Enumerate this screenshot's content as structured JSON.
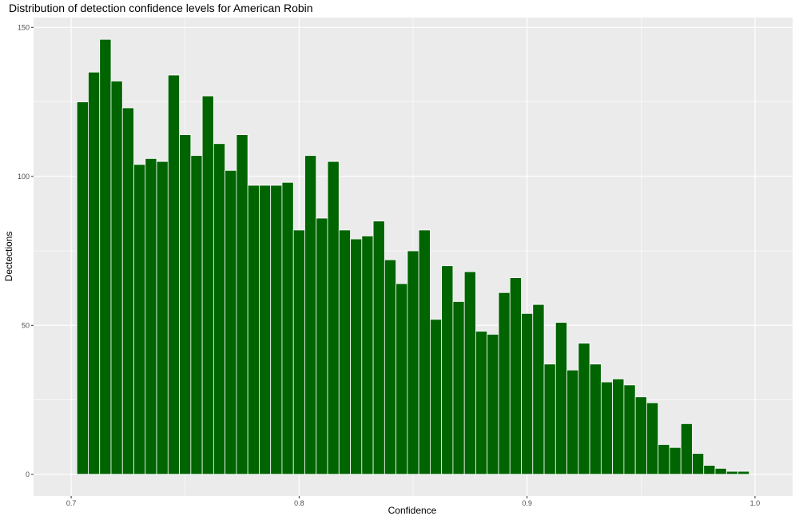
{
  "chart_data": {
    "type": "bar",
    "title": "Distribution of detection confidence levels for American Robin",
    "xlabel": "Confidence",
    "ylabel": "Dectections",
    "bin_width": 0.005,
    "bin_starts": [
      0.7025,
      0.7075,
      0.7125,
      0.7175,
      0.7225,
      0.7275,
      0.7325,
      0.7375,
      0.7425,
      0.7475,
      0.7525,
      0.7575,
      0.7625,
      0.7675,
      0.7725,
      0.7775,
      0.7825,
      0.7875,
      0.7925,
      0.7975,
      0.8025,
      0.8075,
      0.8125,
      0.8175,
      0.8225,
      0.8275,
      0.8325,
      0.8375,
      0.8425,
      0.8475,
      0.8525,
      0.8575,
      0.8625,
      0.8675,
      0.8725,
      0.8775,
      0.8825,
      0.8875,
      0.8925,
      0.8975,
      0.9025,
      0.9075,
      0.9125,
      0.9175,
      0.9225,
      0.9275,
      0.9325,
      0.9375,
      0.9425,
      0.9475,
      0.9525,
      0.9575,
      0.9625,
      0.9675,
      0.9725,
      0.9775,
      0.9825,
      0.9875,
      0.9925
    ],
    "values": [
      125,
      135,
      146,
      132,
      123,
      104,
      106,
      105,
      134,
      114,
      107,
      127,
      111,
      102,
      114,
      97,
      97,
      97,
      98,
      82,
      107,
      86,
      105,
      82,
      79,
      80,
      85,
      72,
      64,
      75,
      82,
      52,
      70,
      58,
      68,
      48,
      47,
      61,
      66,
      54,
      57,
      37,
      51,
      35,
      44,
      37,
      31,
      32,
      30,
      26,
      24,
      10,
      9,
      17,
      7,
      3,
      2,
      1,
      1
    ],
    "xlim": [
      0.6835,
      1.0165
    ],
    "ylim": [
      -7.3,
      153.3
    ],
    "x_ticks": [
      0.7,
      0.8,
      0.9,
      1.0
    ],
    "x_tick_labels": [
      "0.7",
      "0.8",
      "0.9",
      "1.0"
    ],
    "y_ticks": [
      0,
      50,
      100,
      150
    ],
    "y_tick_labels": [
      "0",
      "50",
      "100",
      "150"
    ],
    "grid": true,
    "legend": "none",
    "bar_color": "#006400",
    "bar_outline": "#ffffff",
    "panel_background": "#ebebeb",
    "grid_color": "#ffffff"
  }
}
